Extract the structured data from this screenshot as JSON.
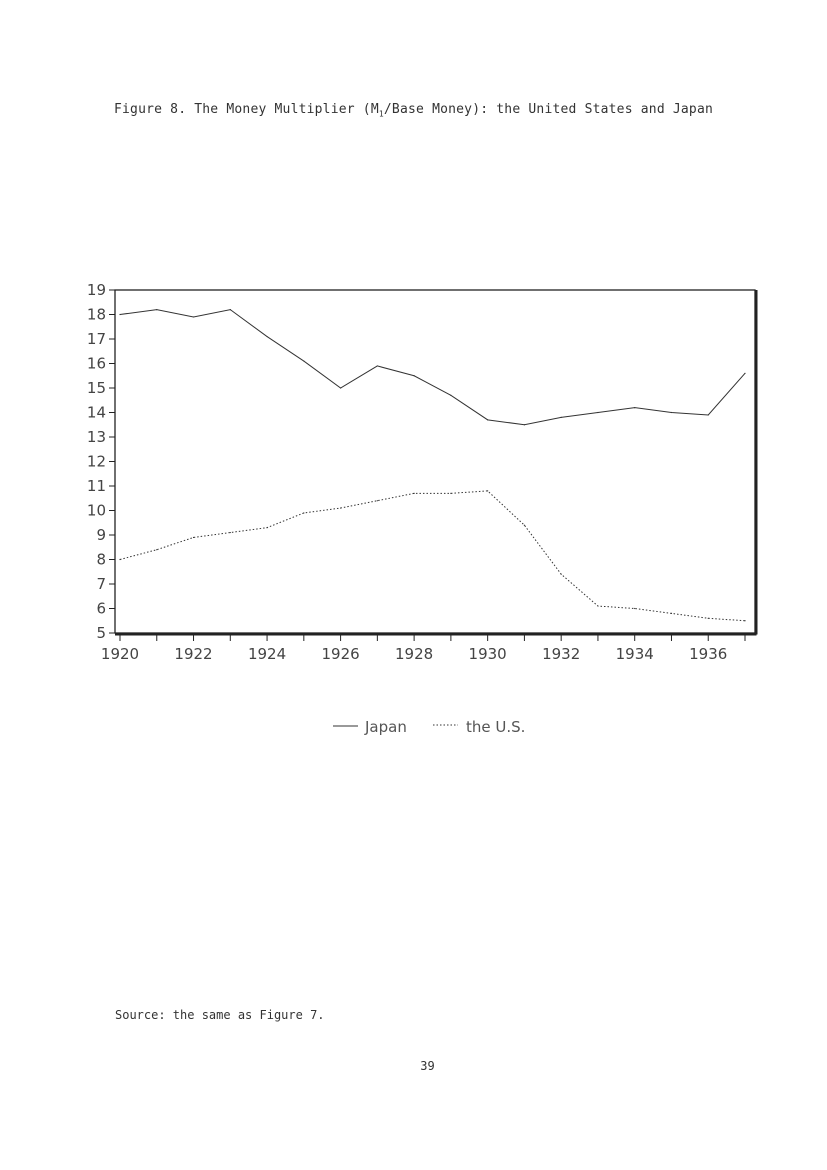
{
  "page": {
    "title_pre": "Figure 8. The Money Multiplier (M",
    "title_sub": "1",
    "title_post": "/Base Money): the United States and Japan",
    "source": "Source: the same as Figure 7.",
    "page_number": "39"
  },
  "chart_data": {
    "type": "line",
    "title": "",
    "xlabel": "",
    "ylabel": "",
    "x": [
      1920,
      1921,
      1922,
      1923,
      1924,
      1925,
      1926,
      1927,
      1928,
      1929,
      1930,
      1931,
      1932,
      1933,
      1934,
      1935,
      1936,
      1937
    ],
    "xlim": [
      1920,
      1937
    ],
    "ylim": [
      5,
      19
    ],
    "x_ticks": [
      "1920",
      "1922",
      "1924",
      "1926",
      "1928",
      "1930",
      "1932",
      "1934",
      "1936"
    ],
    "y_ticks": [
      "19",
      "18",
      "17",
      "16",
      "15",
      "14",
      "13",
      "12",
      "11",
      "10",
      "9",
      "8",
      "7",
      "6",
      "5"
    ],
    "grid": false,
    "legend_position": "bottom",
    "series": [
      {
        "name": "Japan",
        "style": "solid",
        "values": [
          18.0,
          18.2,
          17.9,
          18.2,
          17.1,
          16.1,
          15.0,
          15.9,
          15.5,
          14.7,
          13.7,
          13.5,
          13.8,
          14.0,
          14.2,
          14.0,
          13.9,
          15.6
        ]
      },
      {
        "name": "the U.S.",
        "style": "dotted",
        "values": [
          8.0,
          8.4,
          8.9,
          9.1,
          9.3,
          9.9,
          10.1,
          10.4,
          10.7,
          10.7,
          10.8,
          9.4,
          7.4,
          6.1,
          6.0,
          5.8,
          5.6,
          5.5
        ]
      }
    ]
  }
}
